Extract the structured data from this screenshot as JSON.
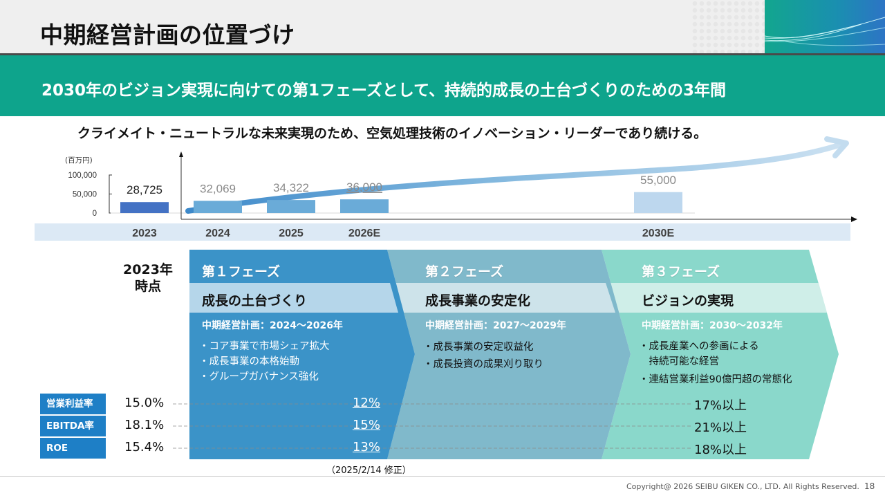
{
  "header": {
    "title": "中期経営計画の位置づけ"
  },
  "banner": {
    "text": "2030年のビジョン実現に向けての第1フェーズとして、持続的成長の土台づくりのための3年間"
  },
  "vision_statement": "クライメイト・ニュートラルな未来実現のため、空気処理技術のイノベーション・リーダーであり続ける。",
  "colors": {
    "title_bar": "#efefef",
    "banner": "#0ea48c",
    "phase1": "#3b93c8",
    "phase1_sub": "#b5d6ea",
    "phase2": "#80b9cb",
    "phase2_sub": "#cde3ea",
    "phase3": "#8ad8cb",
    "phase3_sub": "#cfeee8",
    "kpi_label": "#1e7fc6",
    "bar_actual": "#4472c4",
    "bar_plan": "#6aabd8",
    "bar_target": "#bdd7ee",
    "year_band": "#dce9f5"
  },
  "chart_data": {
    "type": "bar",
    "unit_label": "(百万円)",
    "categories": [
      "2023",
      "2024",
      "2025",
      "2026E",
      "2030E"
    ],
    "values": [
      28725,
      32069,
      34322,
      36000,
      55000
    ],
    "value_labels": [
      "28,725",
      "32,069",
      "34,322",
      "36,000",
      "55,000"
    ],
    "y_ticks": [
      "100,000",
      "50,000",
      "0"
    ],
    "ylim": [
      0,
      100000
    ],
    "title": "",
    "xlabel": "",
    "ylabel": "(百万円)",
    "grid": false,
    "legend": "none",
    "annotations": [
      "36,000 underlined (plan target)",
      "growth arrow trending upward toward 2030E"
    ]
  },
  "timeline": {
    "baseline_label_line1": "2023年",
    "baseline_label_line2": "時点",
    "phases": [
      {
        "title": "第１フェーズ",
        "subtitle": "成長の土台づくり",
        "plan": "中期経営計画：2024～2026年",
        "bullets": [
          "・コア事業で市場シェア拡大",
          "・成長事業の本格始動",
          "・グループガバナンス強化"
        ]
      },
      {
        "title": "第２フェーズ",
        "subtitle": "成長事業の安定化",
        "plan": "中期経営計画：2027～2029年",
        "bullets": [
          "・成長事業の安定収益化",
          "・成長投資の成果刈り取り"
        ]
      },
      {
        "title": "第３フェーズ",
        "subtitle": "ビジョンの実現",
        "plan": "中期経営計画：2030～2032年",
        "bullets": [
          "・成長産業への参画による",
          "　持続可能な経営",
          "・連結営業利益90億円超の常態化"
        ]
      }
    ]
  },
  "kpis": [
    {
      "label": "営業利益率",
      "baseline_2023": "15.0%",
      "phase1": "12%",
      "phase3": "17%以上"
    },
    {
      "label": "EBITDA率",
      "baseline_2023": "18.1%",
      "phase1": "15%",
      "phase3": "21%以上"
    },
    {
      "label": "ROE",
      "baseline_2023": "15.4%",
      "phase1": "13%",
      "phase3": "18%以上"
    }
  ],
  "revision_note": "（2025/2/14 修正）",
  "footer": {
    "copyright": "Copyright@ 2026 SEIBU GIKEN CO., LTD. All Rights  Reserved.",
    "page_number": "18"
  }
}
